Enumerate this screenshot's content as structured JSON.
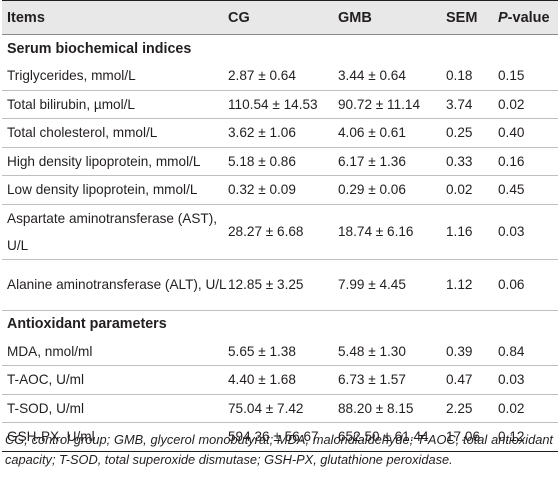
{
  "header": {
    "items": "Items",
    "cg": "CG",
    "gmb": "GMB",
    "sem": "SEM",
    "p_italic": "P",
    "p_rest": "-value"
  },
  "sections": [
    {
      "title": "Serum biochemical indices",
      "rows": [
        {
          "item": "Triglycerides, mmol/L",
          "cg": "2.87 ± 0.64",
          "gmb": "3.44 ± 0.64",
          "sem": "0.18",
          "p": "0.15"
        },
        {
          "item": "Total bilirubin, µmol/L",
          "cg": "110.54 ± 14.53",
          "gmb": "90.72 ± 11.14",
          "sem": "3.74",
          "p": "0.02"
        },
        {
          "item": "Total cholesterol, mmol/L",
          "cg": "3.62 ± 1.06",
          "gmb": "4.06 ± 0.61",
          "sem": "0.25",
          "p": "0.40"
        },
        {
          "item": "High density lipoprotein, mmol/L",
          "cg": "5.18 ± 0.86",
          "gmb": "6.17 ± 1.36",
          "sem": "0.33",
          "p": "0.16"
        },
        {
          "item": "Low density lipoprotein, mmol/L",
          "cg": "0.32 ± 0.09",
          "gmb": "0.29 ± 0.06",
          "sem": "0.02",
          "p": "0.45"
        },
        {
          "item": "Aspartate aminotransferase (AST), U/L",
          "cg": "28.27 ± 6.68",
          "gmb": "18.74 ± 6.16",
          "sem": "1.16",
          "p": "0.03"
        },
        {
          "item": "Alanine aminotransferase (ALT), U/L",
          "cg": "12.85 ± 3.25",
          "gmb": "7.99 ± 4.45",
          "sem": "1.12",
          "p": "0.06"
        }
      ]
    },
    {
      "title": "Antioxidant parameters",
      "rows": [
        {
          "item": "MDA, nmol/ml",
          "cg": "5.65 ± 1.38",
          "gmb": "5.48 ± 1.30",
          "sem": "0.39",
          "p": "0.84"
        },
        {
          "item": "T-AOC, U/ml",
          "cg": "4.40 ± 1.68",
          "gmb": "6.73 ± 1.57",
          "sem": "0.47",
          "p": "0.03"
        },
        {
          "item": "T-SOD, U/ml",
          "cg": "75.04 ± 7.42",
          "gmb": "88.20 ± 8.15",
          "sem": "2.25",
          "p": "0.02"
        },
        {
          "item": "GSH-PX, U/ml",
          "cg": "594.36 ± 56.67",
          "gmb": "652.50 ± 61.44",
          "sem": "17.06",
          "p": "0.12"
        }
      ]
    }
  ],
  "footnote": "CG, control group; GMB, glycerol monobutyrat; MDA, malondialdehyde; T-AOC, total antioxidant capacity; T-SOD, total superoxide dismutase; GSH-PX, glutathione peroxidase."
}
